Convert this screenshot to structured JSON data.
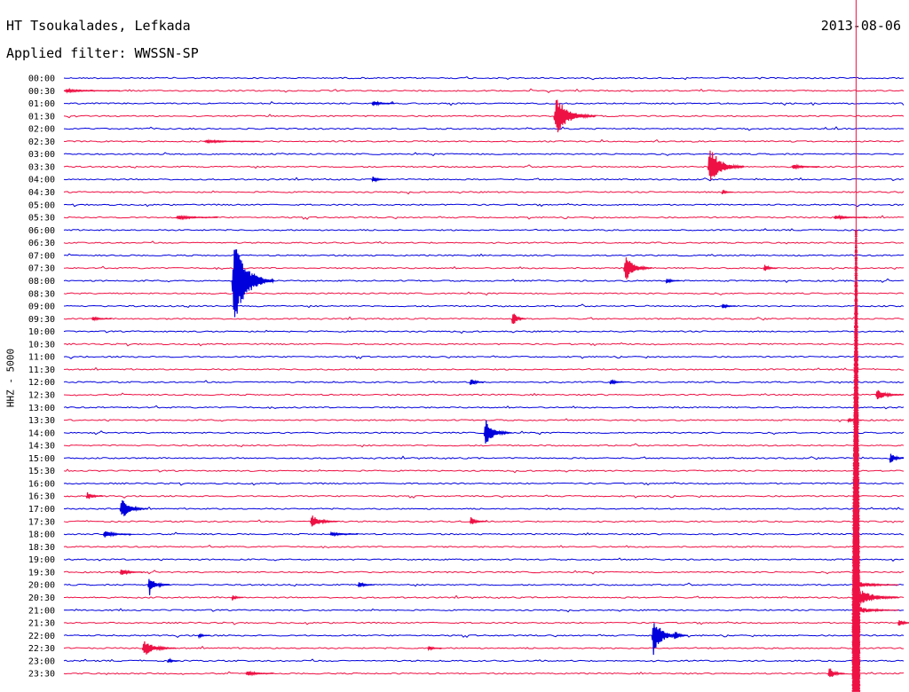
{
  "header": {
    "station": "HT Tsoukalades, Lefkada",
    "date": "2013-08-06",
    "filter": "Applied filter: WWSSN-SP"
  },
  "chart_data": {
    "type": "line",
    "title": "HT Tsoukalades, Lefkada",
    "ylabel": "HHZ - 5000",
    "colors": [
      "#0000dd",
      "#ee1144"
    ],
    "trace_labels": [
      "00:00",
      "00:30",
      "01:00",
      "01:30",
      "02:00",
      "02:30",
      "03:00",
      "03:30",
      "04:00",
      "04:30",
      "05:00",
      "05:30",
      "06:00",
      "06:30",
      "07:00",
      "07:30",
      "08:00",
      "08:30",
      "09:00",
      "09:30",
      "10:00",
      "10:30",
      "11:00",
      "11:30",
      "12:00",
      "12:30",
      "13:00",
      "13:30",
      "14:00",
      "14:30",
      "15:00",
      "15:30",
      "16:00",
      "16:30",
      "17:00",
      "17:30",
      "18:00",
      "18:30",
      "19:00",
      "19:30",
      "20:00",
      "20:30",
      "21:00",
      "21:30",
      "22:00",
      "22:30",
      "23:00",
      "23:30"
    ],
    "trace_minutes": 30,
    "events": [
      {
        "trace": 1,
        "at_min": 0.0,
        "amp": 2,
        "dur_min": 2.0
      },
      {
        "trace": 2,
        "at_min": 11.0,
        "amp": 4,
        "dur_min": 0.8
      },
      {
        "trace": 3,
        "at_min": 17.5,
        "amp": 28,
        "dur_min": 1.5
      },
      {
        "trace": 5,
        "at_min": 5.0,
        "amp": 2,
        "dur_min": 2.0
      },
      {
        "trace": 7,
        "at_min": 23.0,
        "amp": 30,
        "dur_min": 1.3
      },
      {
        "trace": 7,
        "at_min": 26.0,
        "amp": 3,
        "dur_min": 1.0
      },
      {
        "trace": 8,
        "at_min": 11.0,
        "amp": 5,
        "dur_min": 0.5
      },
      {
        "trace": 9,
        "at_min": 23.5,
        "amp": 4,
        "dur_min": 0.4
      },
      {
        "trace": 11,
        "at_min": 4.0,
        "amp": 3,
        "dur_min": 1.5
      },
      {
        "trace": 11,
        "at_min": 27.5,
        "amp": 3,
        "dur_min": 1.2
      },
      {
        "trace": 15,
        "at_min": 20.0,
        "amp": 20,
        "dur_min": 1.0
      },
      {
        "trace": 15,
        "at_min": 25.0,
        "amp": 6,
        "dur_min": 0.5
      },
      {
        "trace": 16,
        "at_min": 6.0,
        "amp": 70,
        "dur_min": 1.5
      },
      {
        "trace": 16,
        "at_min": 21.5,
        "amp": 4,
        "dur_min": 0.5
      },
      {
        "trace": 18,
        "at_min": 23.5,
        "amp": 4,
        "dur_min": 0.5
      },
      {
        "trace": 19,
        "at_min": 1.0,
        "amp": 3,
        "dur_min": 0.7
      },
      {
        "trace": 19,
        "at_min": 16.0,
        "amp": 12,
        "dur_min": 0.5
      },
      {
        "trace": 24,
        "at_min": 14.5,
        "amp": 7,
        "dur_min": 0.5
      },
      {
        "trace": 24,
        "at_min": 19.5,
        "amp": 5,
        "dur_min": 0.5
      },
      {
        "trace": 25,
        "at_min": 29.0,
        "amp": 8,
        "dur_min": 1.0
      },
      {
        "trace": 27,
        "at_min": 28.0,
        "amp": 3,
        "dur_min": 0.5
      },
      {
        "trace": 28,
        "at_min": 15.0,
        "amp": 20,
        "dur_min": 1.0
      },
      {
        "trace": 30,
        "at_min": 29.5,
        "amp": 10,
        "dur_min": 0.5
      },
      {
        "trace": 33,
        "at_min": 0.8,
        "amp": 6,
        "dur_min": 0.6
      },
      {
        "trace": 34,
        "at_min": 2.0,
        "amp": 16,
        "dur_min": 1.0
      },
      {
        "trace": 35,
        "at_min": 8.8,
        "amp": 10,
        "dur_min": 1.0
      },
      {
        "trace": 35,
        "at_min": 14.5,
        "amp": 6,
        "dur_min": 0.6
      },
      {
        "trace": 36,
        "at_min": 1.4,
        "amp": 5,
        "dur_min": 1.0
      },
      {
        "trace": 36,
        "at_min": 9.5,
        "amp": 3,
        "dur_min": 1.0
      },
      {
        "trace": 39,
        "at_min": 2.0,
        "amp": 5,
        "dur_min": 0.8
      },
      {
        "trace": 40,
        "at_min": 3.0,
        "amp": 12,
        "dur_min": 0.8
      },
      {
        "trace": 40,
        "at_min": 10.5,
        "amp": 5,
        "dur_min": 0.6
      },
      {
        "trace": 41,
        "at_min": 6.0,
        "amp": 5,
        "dur_min": 0.4
      },
      {
        "trace": 43,
        "at_min": 29.8,
        "amp": 6,
        "dur_min": 0.5
      },
      {
        "trace": 44,
        "at_min": 21.0,
        "amp": 28,
        "dur_min": 1.0
      },
      {
        "trace": 44,
        "at_min": 21.8,
        "amp": 8,
        "dur_min": 0.5
      },
      {
        "trace": 44,
        "at_min": 4.8,
        "amp": 4,
        "dur_min": 0.4
      },
      {
        "trace": 45,
        "at_min": 2.8,
        "amp": 12,
        "dur_min": 1.2
      },
      {
        "trace": 45,
        "at_min": 13.0,
        "amp": 3,
        "dur_min": 0.5
      },
      {
        "trace": 46,
        "at_min": 3.7,
        "amp": 4,
        "dur_min": 0.4
      },
      {
        "trace": 47,
        "at_min": 6.5,
        "amp": 4,
        "dur_min": 1.0
      },
      {
        "trace": 47,
        "at_min": 27.3,
        "amp": 10,
        "dur_min": 0.6
      }
    ],
    "big_event": {
      "start_trace": 12,
      "start_min": 28.3,
      "peak_trace": 41,
      "amp": 36
    }
  }
}
